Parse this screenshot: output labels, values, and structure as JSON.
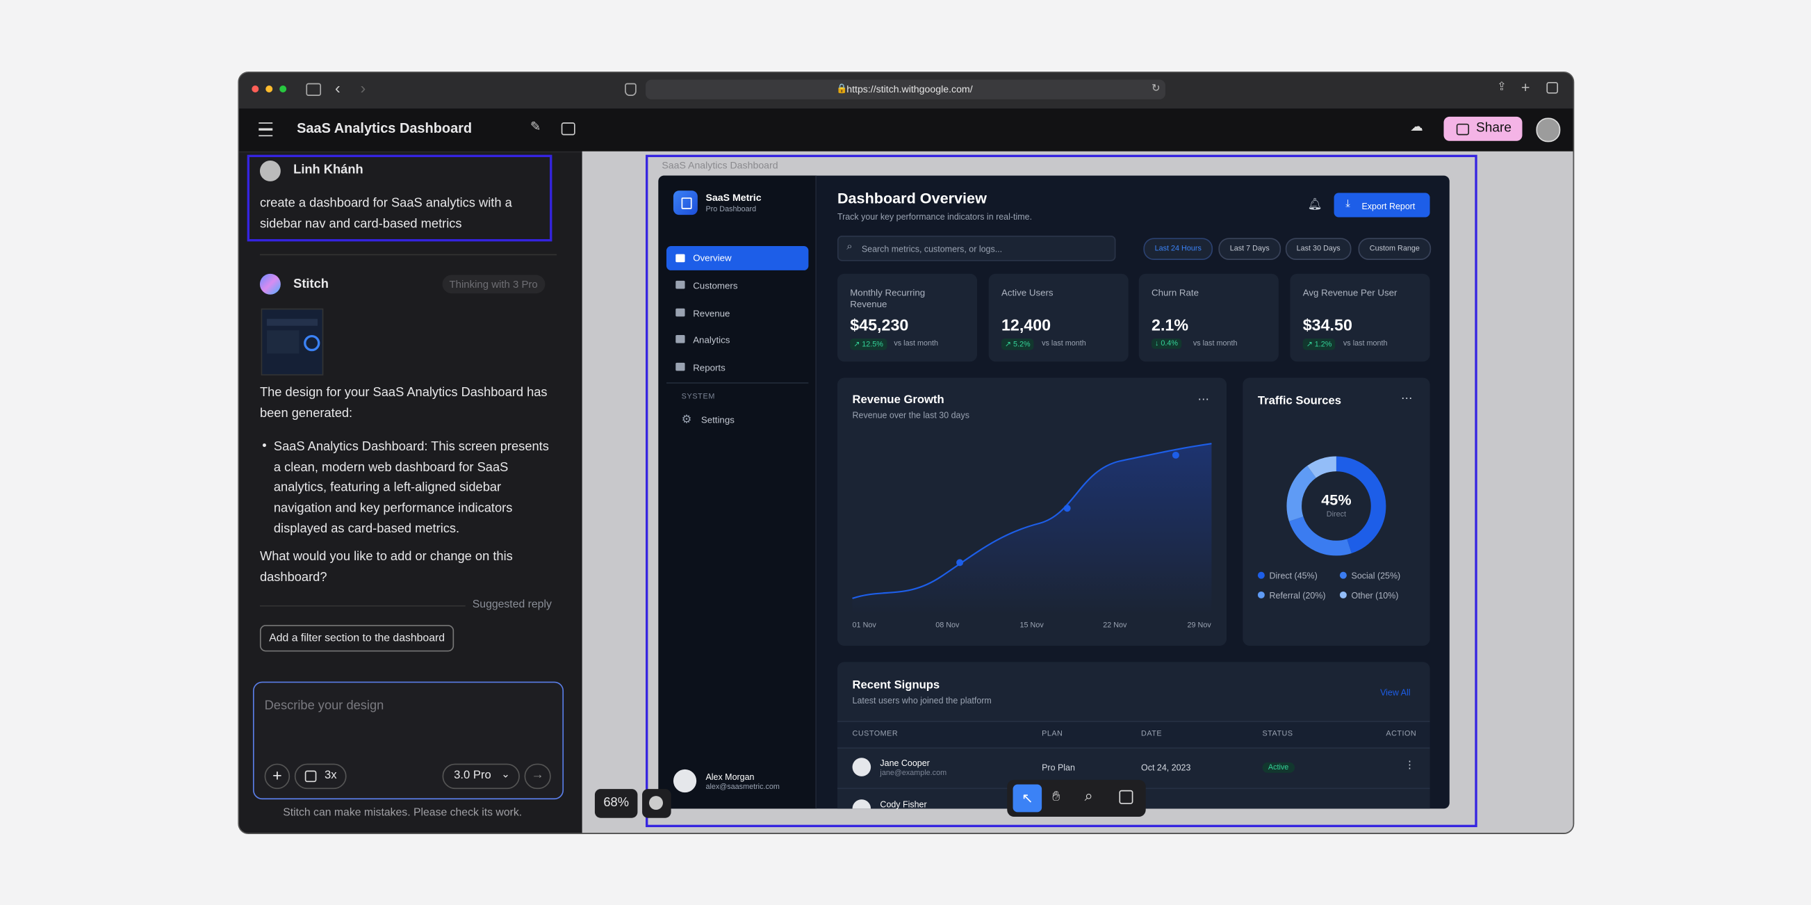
{
  "browser": {
    "url": "https://stitch.withgoogle.com/"
  },
  "app": {
    "title": "SaaS Analytics Dashboard",
    "share": "Share"
  },
  "chat": {
    "user_name": "Linh Khánh",
    "user_message": "create a dashboard for SaaS analytics with a sidebar nav and card-based metrics",
    "agent_name": "Stitch",
    "agent_status": "Thinking with 3 Pro",
    "response_intro": "The design for your SaaS Analytics Dashboard has been generated:",
    "response_bullet": "SaaS Analytics Dashboard: This screen presents a clean, modern web dashboard for SaaS analytics, featuring a left-aligned sidebar navigation and key performance indicators displayed as card-based metrics.",
    "response_question": "What would you like to add or change on this dashboard?",
    "suggested_label": "Suggested reply",
    "suggestion": "Add a filter section to the dashboard",
    "input_placeholder": "Describe your design",
    "multiplier": "3x",
    "model": "3.0 Pro",
    "disclaimer": "Stitch can make mistakes. Please check its work."
  },
  "canvas": {
    "frame_label": "SaaS Analytics Dashboard",
    "zoom": "68%"
  },
  "dashboard": {
    "brand": "SaaS Metric",
    "brand_sub": "Pro Dashboard",
    "nav": [
      "Overview",
      "Customers",
      "Revenue",
      "Analytics",
      "Reports"
    ],
    "system_label": "SYSTEM",
    "settings": "Settings",
    "user": {
      "name": "Alex Morgan",
      "email": "alex@saasmetric.com"
    },
    "title": "Dashboard Overview",
    "subtitle": "Track your key performance indicators in real-time.",
    "export": "Export Report",
    "search": "Search metrics, customers, or logs...",
    "ranges": [
      "Last 24 Hours",
      "Last 7 Days",
      "Last 30 Days",
      "Custom Range"
    ],
    "kpis": [
      {
        "label": "Monthly Recurring Revenue",
        "value": "$45,230",
        "change": "12.5%",
        "note": "vs last month"
      },
      {
        "label": "Active Users",
        "value": "12,400",
        "change": "5.2%",
        "note": "vs last month"
      },
      {
        "label": "Churn Rate",
        "value": "2.1%",
        "change": "0.4%",
        "note": "vs last month"
      },
      {
        "label": "Avg Revenue Per User",
        "value": "$34.50",
        "change": "1.2%",
        "note": "vs last month"
      }
    ],
    "revenue": {
      "title": "Revenue Growth",
      "subtitle": "Revenue over the last 30 days",
      "x": [
        "01 Nov",
        "08 Nov",
        "15 Nov",
        "22 Nov",
        "29 Nov"
      ]
    },
    "traffic": {
      "title": "Traffic Sources",
      "center": "45%",
      "center_label": "Direct",
      "legend": [
        "Direct (45%)",
        "Social (25%)",
        "Referral (20%)",
        "Other (10%)"
      ]
    },
    "signups": {
      "title": "Recent Signups",
      "subtitle": "Latest users who joined the platform",
      "view_all": "View All",
      "columns": [
        "CUSTOMER",
        "PLAN",
        "DATE",
        "STATUS",
        "ACTION"
      ],
      "rows": [
        {
          "name": "Jane Cooper",
          "email": "jane@example.com",
          "plan": "Pro Plan",
          "date": "Oct 24, 2023",
          "status": "Active"
        },
        {
          "name": "Cody Fisher"
        }
      ]
    }
  }
}
